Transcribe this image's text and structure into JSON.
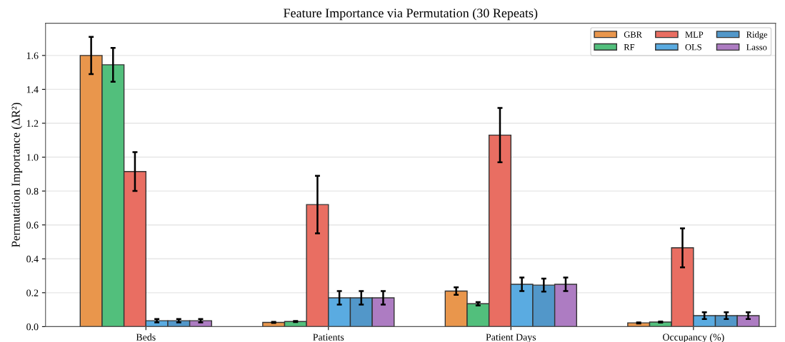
{
  "chart_data": {
    "type": "bar",
    "title": "Feature Importance via Permutation (30 Repeats)",
    "ylabel": "Permutation Importance (ΔR²)",
    "categories": [
      "Beds",
      "Patients",
      "Patient Days",
      "Occupancy (%)"
    ],
    "series": [
      {
        "name": "GBR",
        "color": "#e9964c",
        "values": [
          1.6,
          0.025,
          0.21,
          0.022
        ],
        "errors": [
          0.11,
          0.003,
          0.022,
          0.003
        ]
      },
      {
        "name": "RF",
        "color": "#52bf7c",
        "values": [
          1.545,
          0.03,
          0.135,
          0.027
        ],
        "errors": [
          0.1,
          0.003,
          0.01,
          0.003
        ]
      },
      {
        "name": "MLP",
        "color": "#e96e62",
        "values": [
          0.915,
          0.72,
          1.13,
          0.465
        ],
        "errors": [
          0.115,
          0.17,
          0.16,
          0.115
        ]
      },
      {
        "name": "OLS",
        "color": "#5aabe1",
        "values": [
          0.035,
          0.17,
          0.25,
          0.065
        ],
        "errors": [
          0.01,
          0.04,
          0.04,
          0.02
        ]
      },
      {
        "name": "Ridge",
        "color": "#5297c9",
        "values": [
          0.035,
          0.17,
          0.245,
          0.065
        ],
        "errors": [
          0.01,
          0.04,
          0.038,
          0.02
        ]
      },
      {
        "name": "Lasso",
        "color": "#ad7cc2",
        "values": [
          0.035,
          0.17,
          0.25,
          0.065
        ],
        "errors": [
          0.01,
          0.04,
          0.04,
          0.02
        ]
      }
    ],
    "ylim": [
      0,
      1.79
    ],
    "yticks": [
      {
        "value": 0,
        "label": "0.0"
      },
      {
        "value": 0.2,
        "label": "0.2"
      },
      {
        "value": 0.4,
        "label": "0.4"
      },
      {
        "value": 0.6,
        "label": "0.6"
      },
      {
        "value": 0.8,
        "label": "0.8"
      },
      {
        "value": 1.0,
        "label": "1.0"
      },
      {
        "value": 1.2,
        "label": "1.2"
      },
      {
        "value": 1.4,
        "label": "1.4"
      },
      {
        "value": 1.6,
        "label": "1.6"
      }
    ],
    "grid": "y",
    "legend": "top right"
  }
}
